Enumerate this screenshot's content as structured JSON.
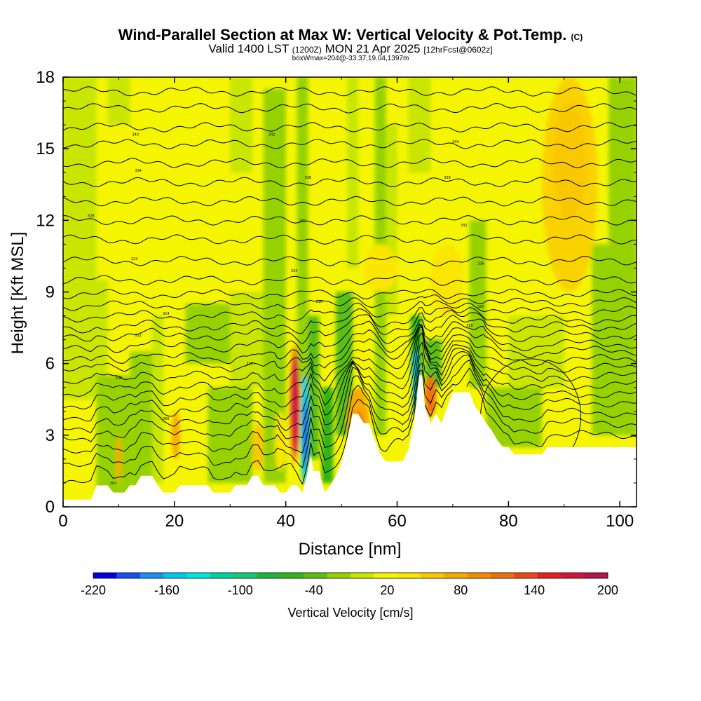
{
  "chart_data": {
    "type": "heatmap",
    "title": {
      "main": "Wind-Parallel Section at Max W: Vertical Velocity & Pot.Temp.",
      "copyright": "(C)",
      "valid_prefix": "Valid 1400 LST",
      "valid_utc": "(1200Z)",
      "valid_date": "MON 21 Apr 2025",
      "forecast": "[12hrFcst@0602z]",
      "subtitle": "boxWmax=204@-33.37,19.04,1397m"
    },
    "xlabel": "Distance [nm]",
    "ylabel": "Height [Kft MSL]",
    "xlim": [
      0,
      103
    ],
    "ylim": [
      0,
      18
    ],
    "xticks": [
      "0",
      "20",
      "40",
      "60",
      "80",
      "100"
    ],
    "yticks": [
      "0",
      "3",
      "6",
      "9",
      "12",
      "15",
      "18"
    ],
    "colorbar": {
      "label": "Vertical Velocity [cm/s]",
      "range": [
        -220,
        200
      ],
      "tick_labels": [
        "-220",
        "-160",
        "-100",
        "-40",
        "20",
        "80",
        "140",
        "200"
      ],
      "colors": [
        "#0000dc",
        "#1450f0",
        "#1e8cf0",
        "#00c8f0",
        "#00e6dc",
        "#00d2a0",
        "#14c878",
        "#1eb43c",
        "#32b414",
        "#5abe14",
        "#96d200",
        "#c8e600",
        "#f5f500",
        "#fae600",
        "#fac800",
        "#f8aa00",
        "#f58c00",
        "#f06e0a",
        "#ee4614",
        "#e61e1e",
        "#d2143c",
        "#b4144b"
      ]
    },
    "terrain": [
      [
        0,
        0.3
      ],
      [
        5,
        0.3
      ],
      [
        6,
        0.9
      ],
      [
        8,
        0.9
      ],
      [
        9,
        0.6
      ],
      [
        11,
        0.6
      ],
      [
        12,
        0.9
      ],
      [
        13,
        0.9
      ],
      [
        14,
        1.3
      ],
      [
        16,
        1.3
      ],
      [
        17,
        0.9
      ],
      [
        18,
        0.6
      ],
      [
        20,
        0.6
      ],
      [
        21,
        0.9
      ],
      [
        26,
        0.9
      ],
      [
        27,
        0.6
      ],
      [
        30,
        0.6
      ],
      [
        31,
        0.9
      ],
      [
        33,
        0.9
      ],
      [
        34,
        1.3
      ],
      [
        35,
        1.3
      ],
      [
        36,
        0.9
      ],
      [
        38,
        0.9
      ],
      [
        39,
        0.6
      ],
      [
        40,
        0.6
      ],
      [
        41,
        0.9
      ],
      [
        42,
        0.9
      ],
      [
        43,
        0.6
      ],
      [
        44,
        1.5
      ],
      [
        44.5,
        2.2
      ],
      [
        45,
        1.5
      ],
      [
        46,
        1.5
      ],
      [
        47,
        0.6
      ],
      [
        48,
        0.9
      ],
      [
        49,
        1.3
      ],
      [
        50,
        1.9
      ],
      [
        51,
        2.8
      ],
      [
        52,
        3.9
      ],
      [
        53,
        3.9
      ],
      [
        54,
        3.5
      ],
      [
        55,
        3.5
      ],
      [
        56,
        2.8
      ],
      [
        57,
        2.2
      ],
      [
        58,
        1.9
      ],
      [
        61,
        1.9
      ],
      [
        62,
        2.4
      ],
      [
        63,
        3.5
      ],
      [
        64,
        5.5
      ],
      [
        64.5,
        5.5
      ],
      [
        65,
        4.2
      ],
      [
        66,
        3.5
      ],
      [
        67,
        3.9
      ],
      [
        68,
        3.5
      ],
      [
        69,
        4.2
      ],
      [
        70,
        4.8
      ],
      [
        73,
        4.8
      ],
      [
        74,
        4.2
      ],
      [
        75,
        3.9
      ],
      [
        76,
        3.5
      ],
      [
        77,
        3.2
      ],
      [
        78,
        2.8
      ],
      [
        79,
        2.5
      ],
      [
        80,
        2.5
      ],
      [
        81,
        2.2
      ],
      [
        86,
        2.2
      ],
      [
        87,
        2.5
      ],
      [
        92,
        2.5
      ],
      [
        103,
        2.5
      ]
    ],
    "theta_isentropes_base_kft": [
      0.7,
      1.4,
      2.0,
      2.6,
      3.1,
      3.6,
      4.1,
      4.6,
      5.1,
      5.6,
      6.0,
      6.5,
      7.0,
      7.4,
      7.9,
      8.4,
      8.9,
      9.5,
      10.3,
      11.2,
      12.0,
      12.8,
      13.6,
      14.4,
      15.2,
      15.9,
      16.7,
      17.4
    ],
    "isentrope_labels": [
      {
        "text": "302",
        "x": 9,
        "y": 1.0
      },
      {
        "text": "305",
        "x": 18.5,
        "y": 3.7
      },
      {
        "text": "308",
        "x": 10,
        "y": 5.4
      },
      {
        "text": "310",
        "x": 33.5,
        "y": 6.0
      },
      {
        "text": "312",
        "x": 13.5,
        "y": 7.2
      },
      {
        "text": "314",
        "x": 18.5,
        "y": 8.1
      },
      {
        "text": "316",
        "x": 46,
        "y": 8.6
      },
      {
        "text": "318",
        "x": 73,
        "y": 7.6
      },
      {
        "text": "320",
        "x": 75,
        "y": 8.4
      },
      {
        "text": "322",
        "x": 12.8,
        "y": 10.4
      },
      {
        "text": "324",
        "x": 41.5,
        "y": 9.9
      },
      {
        "text": "326",
        "x": 75,
        "y": 10.2
      },
      {
        "text": "328",
        "x": 5,
        "y": 12.2
      },
      {
        "text": "330",
        "x": 43,
        "y": 12.0
      },
      {
        "text": "332",
        "x": 72,
        "y": 11.8
      },
      {
        "text": "334",
        "x": 13.5,
        "y": 14.1
      },
      {
        "text": "336",
        "x": 44,
        "y": 13.8
      },
      {
        "text": "338",
        "x": 69,
        "y": 13.8
      },
      {
        "text": "340",
        "x": 13,
        "y": 15.6
      },
      {
        "text": "342",
        "x": 37.5,
        "y": 15.6
      },
      {
        "text": "344",
        "x": 70.5,
        "y": 15.3
      }
    ]
  }
}
